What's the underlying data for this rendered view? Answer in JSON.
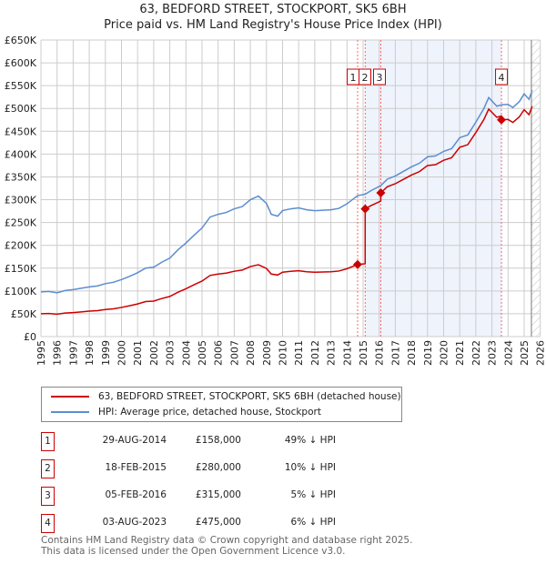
{
  "title": "63, BEDFORD STREET, STOCKPORT, SK5 6BH",
  "subtitle": "Price paid vs. HM Land Registry's House Price Index (HPI)",
  "colors": {
    "price": "#cc0000",
    "hpi": "#5b8dd0",
    "shade": "#eef3fc",
    "grid": "#cccccc"
  },
  "chart_data": {
    "type": "line",
    "title": "63, BEDFORD STREET, STOCKPORT, SK5 6BH — Price paid vs. HM Land Registry's House Price Index (HPI)",
    "xlim": [
      1995,
      2026
    ],
    "ylim": [
      0,
      650000
    ],
    "x_ticks": [
      "1995",
      "1996",
      "1997",
      "1998",
      "1999",
      "2000",
      "2001",
      "2002",
      "2003",
      "2004",
      "2005",
      "2006",
      "2007",
      "2008",
      "2009",
      "2010",
      "2011",
      "2012",
      "2013",
      "2014",
      "2015",
      "2016",
      "2017",
      "2018",
      "2019",
      "2020",
      "2021",
      "2022",
      "2023",
      "2024",
      "2025",
      "2026"
    ],
    "y_ticks": [
      "£0",
      "£50K",
      "£100K",
      "£150K",
      "£200K",
      "£250K",
      "£300K",
      "£350K",
      "£400K",
      "£450K",
      "£500K",
      "£550K",
      "£600K",
      "£650K"
    ],
    "grid": true,
    "series": [
      {
        "name": "HPI: Average price, detached house, Stockport",
        "x": [
          1995,
          1995.5,
          1996,
          1996.5,
          1997,
          1997.5,
          1998,
          1998.5,
          1999,
          1999.5,
          2000,
          2000.5,
          2001,
          2001.5,
          2002,
          2002.5,
          2003,
          2003.5,
          2004,
          2004.5,
          2005,
          2005.5,
          2006,
          2006.5,
          2007,
          2007.5,
          2008,
          2008.5,
          2009,
          2009.3,
          2009.7,
          2010,
          2010.5,
          2011,
          2011.5,
          2012,
          2012.5,
          2013,
          2013.5,
          2014,
          2014.66,
          2015.13,
          2015.5,
          2016.1,
          2016.5,
          2017,
          2017.5,
          2018,
          2018.5,
          2019,
          2019.5,
          2020,
          2020.5,
          2021,
          2021.5,
          2022,
          2022.5,
          2022.8,
          2023.3,
          2023.59,
          2024,
          2024.3,
          2024.7,
          2025,
          2025.3,
          2025.5
        ],
        "y": [
          98000,
          99000,
          96000,
          101000,
          103000,
          106000,
          109000,
          111000,
          116000,
          119000,
          125000,
          132000,
          140000,
          150000,
          152000,
          163000,
          172000,
          190000,
          205000,
          222000,
          238000,
          262000,
          268000,
          272000,
          280000,
          285000,
          300000,
          308000,
          292000,
          268000,
          264000,
          276000,
          280000,
          282000,
          278000,
          276000,
          277000,
          278000,
          281000,
          291000,
          309000,
          312000,
          320000,
          331000,
          345000,
          352000,
          362000,
          372000,
          380000,
          394000,
          396000,
          406000,
          412000,
          436000,
          442000,
          470000,
          500000,
          524000,
          505000,
          508000,
          509000,
          502000,
          515000,
          532000,
          520000,
          540000
        ]
      },
      {
        "name": "63, BEDFORD STREET, STOCKPORT, SK5 6BH (detached house)"
      }
    ],
    "sales": [
      {
        "label": "1",
        "x": 2014.66,
        "price": 158000
      },
      {
        "label": "2",
        "x": 2015.13,
        "price": 280000
      },
      {
        "label": "3",
        "x": 2016.1,
        "price": 315000
      },
      {
        "label": "4",
        "x": 2023.59,
        "price": 475000
      }
    ]
  },
  "legend": {
    "price": "63, BEDFORD STREET, STOCKPORT, SK5 6BH (detached house)",
    "hpi": "HPI: Average price, detached house, Stockport"
  },
  "transactions": [
    {
      "num": "1",
      "date": "29-AUG-2014",
      "price": "£158,000",
      "delta": "49% ↓ HPI"
    },
    {
      "num": "2",
      "date": "18-FEB-2015",
      "price": "£280,000",
      "delta": "10% ↓ HPI"
    },
    {
      "num": "3",
      "date": "05-FEB-2016",
      "price": "£315,000",
      "delta": "5% ↓ HPI"
    },
    {
      "num": "4",
      "date": "03-AUG-2023",
      "price": "£475,000",
      "delta": "6% ↓ HPI"
    }
  ],
  "footer": {
    "line1": "Contains HM Land Registry data © Crown copyright and database right 2025.",
    "line2": "This data is licensed under the Open Government Licence v3.0."
  }
}
